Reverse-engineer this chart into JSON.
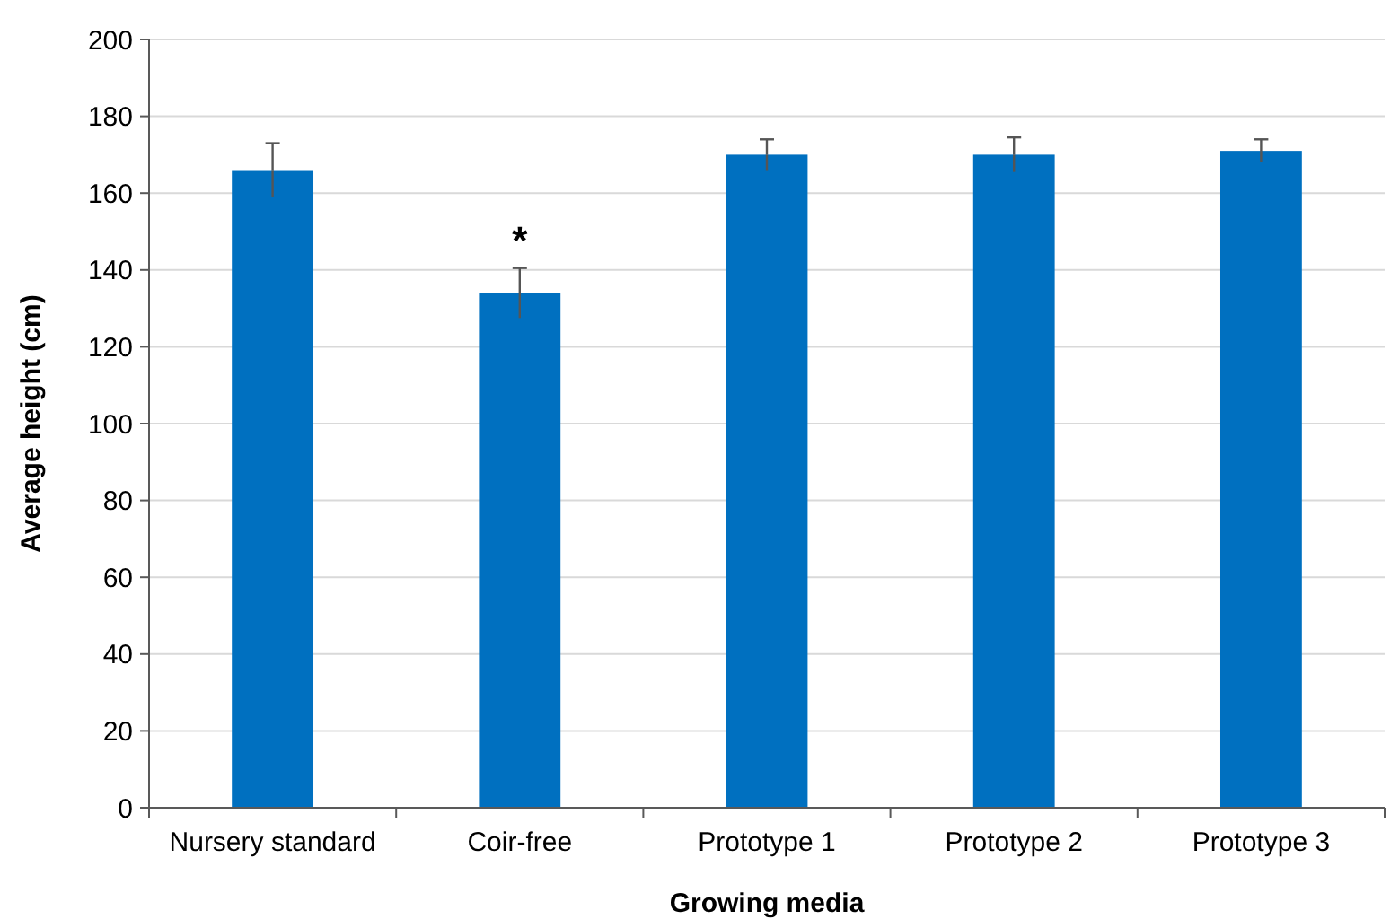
{
  "chart_data": {
    "type": "bar",
    "xlabel": "Growing media",
    "ylabel": "Average height (cm)",
    "categories": [
      "Nursery standard",
      "Coir-free",
      "Prototype 1",
      "Prototype 2",
      "Prototype 3"
    ],
    "values": [
      166,
      134,
      170,
      170,
      171
    ],
    "errors": [
      7,
      6.5,
      4,
      4.5,
      3
    ],
    "color": "#0070c0",
    "ylim": [
      0,
      200
    ],
    "yticks": [
      0,
      20,
      40,
      60,
      80,
      100,
      120,
      140,
      160,
      180,
      200
    ],
    "grid": "y",
    "annotations": [
      {
        "text": "*",
        "x": "Coir-free",
        "y": 140.5
      }
    ]
  }
}
